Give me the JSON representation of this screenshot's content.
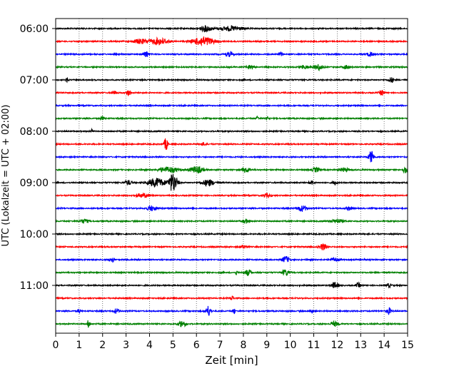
{
  "chart_data": {
    "type": "line",
    "subtype": "helicorder",
    "xlabel": "Zeit  [min]",
    "ylabel": "UTC (Lokalzeit = UTC + 02:00)",
    "xlim": [
      0,
      15
    ],
    "x_ticks": [
      "0",
      "1",
      "2",
      "3",
      "4",
      "5",
      "6",
      "7",
      "8",
      "9",
      "10",
      "11",
      "12",
      "13",
      "14",
      "15"
    ],
    "y_tick_labels": [
      "06:00",
      "07:00",
      "08:00",
      "09:00",
      "10:00",
      "11:00"
    ],
    "grid": "vertical dotted lines at each minute",
    "row_interval_min": 15,
    "color_cycle": [
      "#000000",
      "#ff0000",
      "#0000ff",
      "#008000"
    ],
    "rows": [
      {
        "start": "06:00",
        "color": "#000000",
        "events": [
          [
            6.4,
            0.5,
            0.45
          ],
          [
            7.5,
            1.0,
            0.35
          ]
        ]
      },
      {
        "start": "06:15",
        "color": "#ff0000",
        "events": [
          [
            4.4,
            0.8,
            0.5
          ],
          [
            6.3,
            0.9,
            0.7
          ],
          [
            3.6,
            0.6,
            0.35
          ]
        ]
      },
      {
        "start": "06:30",
        "color": "#0000ff",
        "events": [
          [
            3.85,
            0.2,
            0.55
          ],
          [
            7.4,
            0.3,
            0.35
          ],
          [
            13.4,
            0.3,
            0.3
          ],
          [
            9.6,
            0.2,
            0.25
          ]
        ]
      },
      {
        "start": "06:45",
        "color": "#008000",
        "events": [
          [
            8.3,
            0.3,
            0.35
          ],
          [
            10.6,
            0.3,
            0.3
          ],
          [
            11.2,
            0.4,
            0.45
          ],
          [
            12.4,
            0.3,
            0.3
          ]
        ]
      },
      {
        "start": "07:00",
        "color": "#000000",
        "events": [
          [
            0.5,
            0.1,
            0.4
          ],
          [
            14.3,
            0.2,
            0.4
          ]
        ]
      },
      {
        "start": "07:15",
        "color": "#ff0000",
        "events": [
          [
            3.1,
            0.2,
            0.45
          ],
          [
            13.9,
            0.2,
            0.4
          ],
          [
            2.5,
            0.2,
            0.25
          ]
        ]
      },
      {
        "start": "07:30",
        "color": "#0000ff",
        "events": []
      },
      {
        "start": "07:45",
        "color": "#008000",
        "events": [
          [
            8.6,
            0.1,
            0.35
          ],
          [
            9.0,
            0.1,
            0.4
          ],
          [
            2.0,
            0.2,
            0.2
          ]
        ]
      },
      {
        "start": "08:00",
        "color": "#000000",
        "events": [
          [
            1.55,
            0.05,
            0.45
          ]
        ]
      },
      {
        "start": "08:15",
        "color": "#ff0000",
        "events": [
          [
            4.7,
            0.15,
            1.0
          ],
          [
            6.3,
            0.2,
            0.25
          ]
        ]
      },
      {
        "start": "08:30",
        "color": "#0000ff",
        "events": [
          [
            13.45,
            0.2,
            1.0
          ]
        ]
      },
      {
        "start": "08:45",
        "color": "#008000",
        "events": [
          [
            4.8,
            0.8,
            0.45
          ],
          [
            6.0,
            0.6,
            0.5
          ],
          [
            8.1,
            0.3,
            0.4
          ],
          [
            11.1,
            0.3,
            0.35
          ],
          [
            12.3,
            0.4,
            0.3
          ],
          [
            14.9,
            0.2,
            0.5
          ]
        ]
      },
      {
        "start": "09:00",
        "color": "#000000",
        "events": [
          [
            5.0,
            0.35,
            1.5
          ],
          [
            4.3,
            0.7,
            0.7
          ],
          [
            3.1,
            0.3,
            0.35
          ],
          [
            6.5,
            0.5,
            0.5
          ],
          [
            10.9,
            0.2,
            0.35
          ],
          [
            11.9,
            0.2,
            0.3
          ]
        ]
      },
      {
        "start": "09:15",
        "color": "#ff0000",
        "events": [
          [
            3.7,
            0.6,
            0.3
          ],
          [
            9.0,
            0.3,
            0.3
          ]
        ]
      },
      {
        "start": "09:30",
        "color": "#0000ff",
        "events": [
          [
            4.1,
            0.4,
            0.4
          ],
          [
            10.5,
            0.4,
            0.45
          ],
          [
            12.5,
            0.3,
            0.25
          ]
        ]
      },
      {
        "start": "09:45",
        "color": "#008000",
        "events": [
          [
            1.2,
            0.4,
            0.3
          ],
          [
            8.1,
            0.3,
            0.3
          ],
          [
            12.0,
            0.5,
            0.3
          ]
        ]
      },
      {
        "start": "10:00",
        "color": "#000000",
        "events": []
      },
      {
        "start": "10:15",
        "color": "#ff0000",
        "events": [
          [
            11.4,
            0.3,
            0.5
          ],
          [
            8.0,
            0.3,
            0.25
          ]
        ]
      },
      {
        "start": "10:30",
        "color": "#0000ff",
        "events": [
          [
            2.4,
            0.2,
            0.4
          ],
          [
            9.8,
            0.3,
            0.5
          ],
          [
            11.9,
            0.3,
            0.3
          ]
        ]
      },
      {
        "start": "10:45",
        "color": "#008000",
        "events": [
          [
            8.2,
            0.3,
            0.45
          ],
          [
            9.8,
            0.3,
            0.5
          ],
          [
            7.7,
            0.1,
            0.35
          ]
        ]
      },
      {
        "start": "11:00",
        "color": "#000000",
        "events": [
          [
            11.9,
            0.3,
            0.45
          ],
          [
            12.9,
            0.2,
            0.35
          ],
          [
            14.2,
            0.2,
            0.3
          ]
        ]
      },
      {
        "start": "11:15",
        "color": "#ff0000",
        "events": [
          [
            7.5,
            0.15,
            0.35
          ]
        ]
      },
      {
        "start": "11:30",
        "color": "#0000ff",
        "events": [
          [
            1.0,
            0.1,
            0.45
          ],
          [
            2.6,
            0.2,
            0.4
          ],
          [
            6.5,
            0.2,
            0.8
          ],
          [
            7.6,
            0.1,
            0.5
          ],
          [
            10.9,
            0.1,
            0.4
          ],
          [
            14.2,
            0.2,
            0.5
          ]
        ]
      },
      {
        "start": "11:45",
        "color": "#008000",
        "events": [
          [
            1.4,
            0.1,
            0.7
          ],
          [
            5.4,
            0.3,
            0.5
          ],
          [
            11.9,
            0.3,
            0.35
          ]
        ]
      }
    ]
  }
}
